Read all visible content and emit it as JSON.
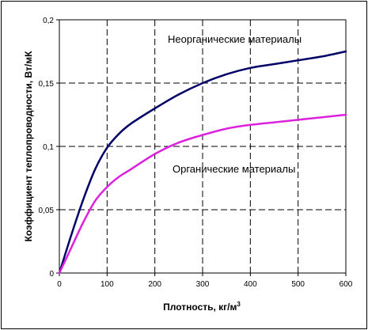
{
  "chart_data": {
    "type": "line",
    "xlabel": "Плотность, кг/м",
    "xlabel_sup": "3",
    "ylabel": "Коэффициент теплопроводности, Вт/мК",
    "xlim": [
      0,
      600
    ],
    "ylim": [
      0,
      0.2
    ],
    "x_ticks": [
      "0",
      "100",
      "200",
      "300",
      "400",
      "500",
      "600"
    ],
    "y_ticks": [
      "0",
      "0,05",
      "0,1",
      "0,15",
      "0,2"
    ],
    "grid": true,
    "series": [
      {
        "name": "Неорганические материалы",
        "color": "#000066",
        "x": [
          0,
          25,
          50,
          75,
          100,
          125,
          150,
          200,
          250,
          300,
          350,
          400,
          450,
          500,
          550,
          600
        ],
        "y": [
          0,
          0.03,
          0.058,
          0.082,
          0.099,
          0.11,
          0.118,
          0.13,
          0.141,
          0.15,
          0.157,
          0.162,
          0.165,
          0.168,
          0.171,
          0.175
        ]
      },
      {
        "name": "Органические материалы",
        "color": "#dd22dd",
        "x": [
          0,
          25,
          50,
          75,
          100,
          125,
          150,
          200,
          250,
          300,
          350,
          400,
          450,
          500,
          550,
          600
        ],
        "y": [
          0,
          0.02,
          0.04,
          0.057,
          0.068,
          0.076,
          0.082,
          0.094,
          0.103,
          0.109,
          0.114,
          0.117,
          0.119,
          0.121,
          0.123,
          0.125
        ]
      }
    ]
  }
}
